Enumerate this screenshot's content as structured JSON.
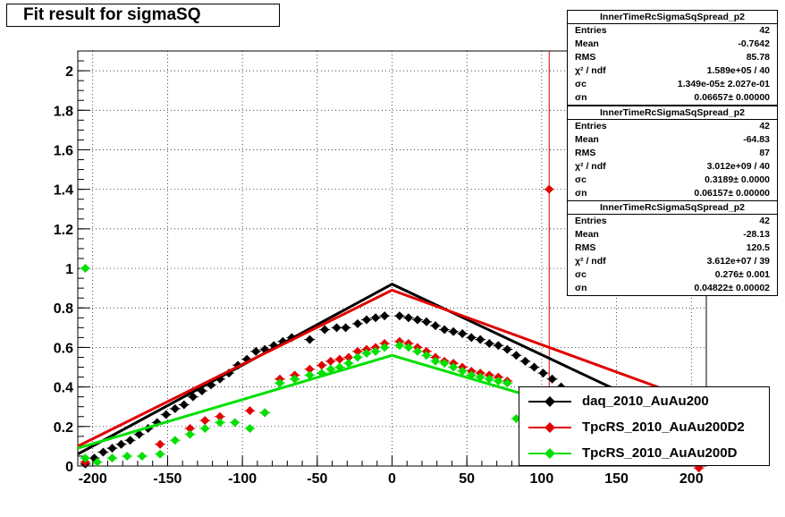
{
  "window": {
    "title": "Fit result for sigmaSQ"
  },
  "colors": {
    "daq": "#000000",
    "rs_d2": "#e00000",
    "rs_d": "#00e000",
    "axis": "#000000"
  },
  "stat_boxes": [
    {
      "title": "InnerTimeRcSigmaSqSpread_p2",
      "rows": [
        {
          "key": "Entries",
          "value": "42"
        },
        {
          "key": "Mean",
          "value": "-0.7642"
        },
        {
          "key": "RMS",
          "value": "85.78"
        },
        {
          "key": "χ² / ndf",
          "value": "1.589e+05 / 40"
        },
        {
          "key": "σc",
          "value": "1.349e-05± 2.027e-01"
        },
        {
          "key": "σn",
          "value": "0.06657± 0.00000"
        }
      ]
    },
    {
      "title": "InnerTimeRcSigmaSqSpread_p2",
      "rows": [
        {
          "key": "Entries",
          "value": "42"
        },
        {
          "key": "Mean",
          "value": "-64.83"
        },
        {
          "key": "RMS",
          "value": "87"
        },
        {
          "key": "χ² / ndf",
          "value": "3.012e+09 / 40"
        },
        {
          "key": "σc",
          "value": "0.3189± 0.0000"
        },
        {
          "key": "σn",
          "value": "0.06157± 0.00000"
        }
      ]
    },
    {
      "title": "InnerTimeRcSigmaSqSpread_p2",
      "rows": [
        {
          "key": "Entries",
          "value": "42"
        },
        {
          "key": "Mean",
          "value": "-28.13"
        },
        {
          "key": "RMS",
          "value": "120.5"
        },
        {
          "key": "χ² / ndf",
          "value": "3.612e+07 / 39"
        },
        {
          "key": "σc",
          "value": "0.276± 0.001"
        },
        {
          "key": "σn",
          "value": "0.04822± 0.00002"
        }
      ]
    }
  ],
  "legend": {
    "items": [
      {
        "label": "daq_2010_AuAu200",
        "color": "#000000"
      },
      {
        "label": "TpcRS_2010_AuAu200D2",
        "color": "#e00000"
      },
      {
        "label": "TpcRS_2010_AuAu200D",
        "color": "#00e000"
      }
    ]
  },
  "chart_data": {
    "type": "scatter",
    "title": "Fit result for sigmaSQ",
    "xlim": [
      -210,
      210
    ],
    "ylim": [
      0,
      2.1
    ],
    "x_ticks": [
      -200,
      -150,
      -100,
      -50,
      0,
      50,
      100,
      150,
      200
    ],
    "x_tick_labels": [
      "-200",
      "-150",
      "-100",
      "-50",
      "0",
      "50",
      "100",
      "150",
      "200"
    ],
    "y_ticks": [
      0,
      0.2,
      0.4,
      0.6,
      0.8,
      1,
      1.2,
      1.4,
      1.6,
      1.8,
      2
    ],
    "y_tick_labels": [
      "0",
      "0.2",
      "0.4",
      "0.6",
      "0.8",
      "1",
      "1.2",
      "1.4",
      "1.6",
      "1.8",
      "2"
    ],
    "grid": true,
    "series": [
      {
        "name": "daq_2010_AuAu200",
        "color": "#000000",
        "points": [
          [
            -205,
            0.01
          ],
          [
            -199,
            0.04
          ],
          [
            -193,
            0.07
          ],
          [
            -187,
            0.09
          ],
          [
            -181,
            0.11
          ],
          [
            -175,
            0.13
          ],
          [
            -169,
            0.16
          ],
          [
            -163,
            0.19
          ],
          [
            -157,
            0.22
          ],
          [
            -151,
            0.26
          ],
          [
            -145,
            0.29
          ],
          [
            -139,
            0.31
          ],
          [
            -133,
            0.35
          ],
          [
            -127,
            0.38
          ],
          [
            -121,
            0.41
          ],
          [
            -115,
            0.44
          ],
          [
            -109,
            0.47
          ],
          [
            -103,
            0.51
          ],
          [
            -97,
            0.54
          ],
          [
            -91,
            0.58
          ],
          [
            -85,
            0.59
          ],
          [
            -79,
            0.61
          ],
          [
            -73,
            0.63
          ],
          [
            -67,
            0.65
          ],
          [
            -55,
            0.64
          ],
          [
            -45,
            0.69
          ],
          [
            -37,
            0.7
          ],
          [
            -31,
            0.7
          ],
          [
            -23,
            0.72
          ],
          [
            -17,
            0.74
          ],
          [
            -11,
            0.75
          ],
          [
            -5,
            0.76
          ],
          [
            5,
            0.76
          ],
          [
            11,
            0.75
          ],
          [
            17,
            0.74
          ],
          [
            23,
            0.73
          ],
          [
            29,
            0.71
          ],
          [
            35,
            0.69
          ],
          [
            41,
            0.68
          ],
          [
            47,
            0.67
          ],
          [
            53,
            0.65
          ],
          [
            59,
            0.64
          ],
          [
            65,
            0.62
          ],
          [
            71,
            0.61
          ],
          [
            77,
            0.59
          ],
          [
            83,
            0.56
          ],
          [
            89,
            0.53
          ],
          [
            95,
            0.5
          ],
          [
            101,
            0.47
          ],
          [
            107,
            0.44
          ],
          [
            113,
            0.4
          ]
        ],
        "fit": [
          [
            -210,
            0.06
          ],
          [
            0,
            0.92
          ],
          [
            210,
            0.17
          ]
        ]
      },
      {
        "name": "TpcRS_2010_AuAu200D2",
        "color": "#e00000",
        "points": [
          [
            -205,
            0.02
          ],
          [
            -155,
            0.11
          ],
          [
            -135,
            0.19
          ],
          [
            -125,
            0.23
          ],
          [
            -115,
            0.25
          ],
          [
            -95,
            0.28
          ],
          [
            -85,
            0.27
          ],
          [
            -75,
            0.44
          ],
          [
            -65,
            0.46
          ],
          [
            -55,
            0.49
          ],
          [
            -47,
            0.51
          ],
          [
            -41,
            0.53
          ],
          [
            -35,
            0.54
          ],
          [
            -29,
            0.55
          ],
          [
            -23,
            0.58
          ],
          [
            -17,
            0.59
          ],
          [
            -11,
            0.6
          ],
          [
            -5,
            0.62
          ],
          [
            5,
            0.63
          ],
          [
            11,
            0.62
          ],
          [
            17,
            0.6
          ],
          [
            23,
            0.58
          ],
          [
            29,
            0.55
          ],
          [
            35,
            0.53
          ],
          [
            41,
            0.52
          ],
          [
            47,
            0.5
          ],
          [
            53,
            0.48
          ],
          [
            59,
            0.47
          ],
          [
            65,
            0.46
          ],
          [
            71,
            0.45
          ],
          [
            77,
            0.43
          ],
          [
            105,
            1.4
          ],
          [
            205,
            -0.01
          ]
        ],
        "fit": [
          [
            -210,
            0.1
          ],
          [
            0,
            0.89
          ],
          [
            210,
            0.31
          ]
        ]
      },
      {
        "name": "TpcRS_2010_AuAu200D",
        "color": "#00e000",
        "points": [
          [
            -205,
            1.0
          ],
          [
            -205,
            0.04
          ],
          [
            -197,
            0.02
          ],
          [
            -187,
            0.04
          ],
          [
            -177,
            0.05
          ],
          [
            -167,
            0.05
          ],
          [
            -155,
            0.06
          ],
          [
            -145,
            0.13
          ],
          [
            -135,
            0.16
          ],
          [
            -125,
            0.19
          ],
          [
            -115,
            0.22
          ],
          [
            -105,
            0.22
          ],
          [
            -95,
            0.19
          ],
          [
            -85,
            0.27
          ],
          [
            -75,
            0.42
          ],
          [
            -65,
            0.44
          ],
          [
            -55,
            0.46
          ],
          [
            -47,
            0.47
          ],
          [
            -41,
            0.49
          ],
          [
            -35,
            0.5
          ],
          [
            -29,
            0.52
          ],
          [
            -23,
            0.55
          ],
          [
            -17,
            0.57
          ],
          [
            -11,
            0.58
          ],
          [
            -5,
            0.6
          ],
          [
            5,
            0.61
          ],
          [
            11,
            0.6
          ],
          [
            17,
            0.58
          ],
          [
            23,
            0.56
          ],
          [
            29,
            0.53
          ],
          [
            35,
            0.52
          ],
          [
            41,
            0.5
          ],
          [
            47,
            0.48
          ],
          [
            53,
            0.46
          ],
          [
            59,
            0.45
          ],
          [
            65,
            0.44
          ],
          [
            71,
            0.43
          ],
          [
            77,
            0.42
          ],
          [
            83,
            0.24
          ]
        ],
        "fit": [
          [
            -210,
            0.09
          ],
          [
            0,
            0.56
          ],
          [
            210,
            0.09
          ]
        ]
      }
    ]
  }
}
